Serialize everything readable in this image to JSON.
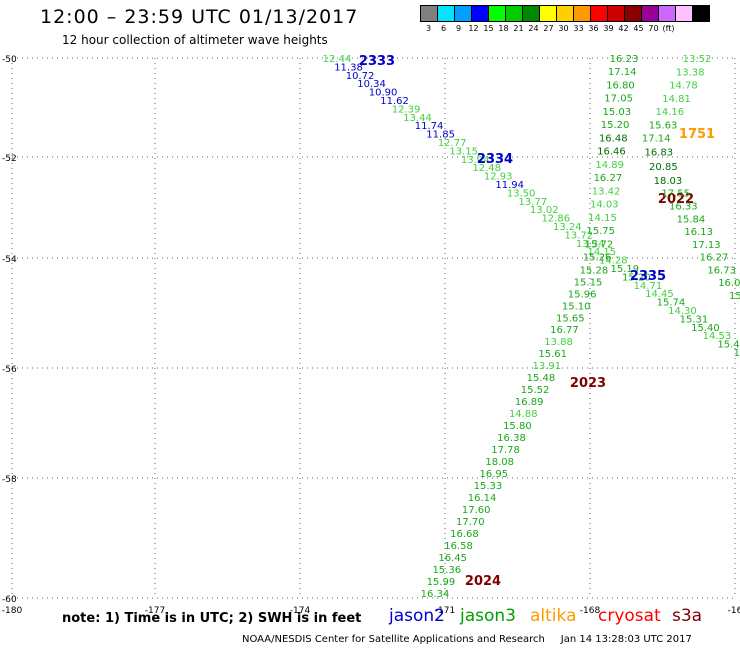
{
  "header": {
    "title": "12:00 – 23:59 UTC 01/13/2017",
    "subtitle": "12 hour collection of altimeter wave heights"
  },
  "legend": {
    "unit": "(ft)",
    "bins": [
      {
        "label": "3",
        "color": "#808080"
      },
      {
        "label": "6",
        "color": "#00e5ff"
      },
      {
        "label": "9",
        "color": "#00a0ff"
      },
      {
        "label": "12",
        "color": "#0000ff"
      },
      {
        "label": "15",
        "color": "#00ff00"
      },
      {
        "label": "18",
        "color": "#00cc00"
      },
      {
        "label": "21",
        "color": "#008800"
      },
      {
        "label": "24",
        "color": "#ffff00"
      },
      {
        "label": "27",
        "color": "#ffd000"
      },
      {
        "label": "30",
        "color": "#ff9900"
      },
      {
        "label": "33",
        "color": "#ff0000"
      },
      {
        "label": "36",
        "color": "#cc0000"
      },
      {
        "label": "39",
        "color": "#880000"
      },
      {
        "label": "42",
        "color": "#990099"
      },
      {
        "label": "45",
        "color": "#cc66ff"
      },
      {
        "label": "70",
        "color": "#ffc0ff"
      },
      {
        "label": "",
        "color": "#000000"
      }
    ]
  },
  "axes": {
    "lon_labels": [
      "-180",
      "-177",
      "-174",
      "-171",
      "-168",
      "-16"
    ],
    "lat_labels": [
      "-50",
      "-52",
      "-54",
      "-56",
      "-58",
      "-60"
    ]
  },
  "colors": {
    "light_green": "#40d040",
    "green": "#18a818",
    "dark_green": "#007000",
    "blue": "#0000cc",
    "dark_red": "#800000",
    "orange": "#ff9900"
  },
  "tracks": [
    {
      "passes": [
        "2333",
        "2334",
        "2335"
      ],
      "pass_colors": [
        "blue",
        "blue",
        "blue"
      ],
      "values": [
        {
          "v": "12.44",
          "c": "light_green"
        },
        {
          "v": "11.38",
          "c": "blue"
        },
        {
          "v": "10.72",
          "c": "blue"
        },
        {
          "v": "10.34",
          "c": "blue"
        },
        {
          "v": "10.90",
          "c": "blue"
        },
        {
          "v": "11.62",
          "c": "blue"
        },
        {
          "v": "12.39",
          "c": "light_green"
        },
        {
          "v": "13.44",
          "c": "light_green"
        },
        {
          "v": "11.74",
          "c": "blue"
        },
        {
          "v": "11.85",
          "c": "blue"
        },
        {
          "v": "12.77",
          "c": "light_green"
        },
        {
          "v": "13.15",
          "c": "light_green"
        },
        {
          "v": "13.04",
          "c": "light_green"
        },
        {
          "v": "12.48",
          "c": "light_green"
        },
        {
          "v": "12.93",
          "c": "light_green"
        },
        {
          "v": "11.94",
          "c": "blue"
        },
        {
          "v": "13.50",
          "c": "light_green"
        },
        {
          "v": "13.77",
          "c": "light_green"
        },
        {
          "v": "13.02",
          "c": "light_green"
        },
        {
          "v": "12.86",
          "c": "light_green"
        },
        {
          "v": "13.24",
          "c": "light_green"
        },
        {
          "v": "13.72",
          "c": "light_green"
        },
        {
          "v": "13.34",
          "c": "light_green"
        },
        {
          "v": "14.15",
          "c": "light_green"
        },
        {
          "v": "14.28",
          "c": "light_green"
        },
        {
          "v": "15.19",
          "c": "green"
        },
        {
          "v": "15.20",
          "c": "green"
        },
        {
          "v": "14.71",
          "c": "light_green"
        },
        {
          "v": "14.45",
          "c": "light_green"
        },
        {
          "v": "15.74",
          "c": "green"
        },
        {
          "v": "14.30",
          "c": "light_green"
        },
        {
          "v": "15.31",
          "c": "green"
        },
        {
          "v": "15.40",
          "c": "green"
        },
        {
          "v": "14.53",
          "c": "light_green"
        },
        {
          "v": "15.4",
          "c": "green"
        },
        {
          "v": "15",
          "c": "green"
        }
      ]
    },
    {
      "passes": [
        "2022",
        "2023",
        "2024"
      ],
      "pass_colors": [
        "dark_red",
        "dark_red",
        "dark_red"
      ],
      "values": [
        {
          "v": "16.23",
          "c": "green"
        },
        {
          "v": "17.14",
          "c": "green"
        },
        {
          "v": "16.80",
          "c": "green"
        },
        {
          "v": "17.05",
          "c": "green"
        },
        {
          "v": "15.03",
          "c": "green"
        },
        {
          "v": "15.20",
          "c": "green"
        },
        {
          "v": "16.48",
          "c": "dark_green"
        },
        {
          "v": "16.46",
          "c": "dark_green"
        },
        {
          "v": "14.89",
          "c": "light_green"
        },
        {
          "v": "16.27",
          "c": "green"
        },
        {
          "v": "13.42",
          "c": "light_green"
        },
        {
          "v": "14.03",
          "c": "light_green"
        },
        {
          "v": "14.15",
          "c": "light_green"
        },
        {
          "v": "15.75",
          "c": "green"
        },
        {
          "v": "15.72",
          "c": "green"
        },
        {
          "v": "15.26",
          "c": "green"
        },
        {
          "v": "15.28",
          "c": "green"
        },
        {
          "v": "15.15",
          "c": "green"
        },
        {
          "v": "15.96",
          "c": "green"
        },
        {
          "v": "15.10",
          "c": "green"
        },
        {
          "v": "15.65",
          "c": "green"
        },
        {
          "v": "16.77",
          "c": "green"
        },
        {
          "v": "13.88",
          "c": "light_green"
        },
        {
          "v": "15.61",
          "c": "green"
        },
        {
          "v": "13.91",
          "c": "light_green"
        },
        {
          "v": "15.48",
          "c": "green"
        },
        {
          "v": "15.52",
          "c": "green"
        },
        {
          "v": "16.89",
          "c": "green"
        },
        {
          "v": "14.88",
          "c": "light_green"
        },
        {
          "v": "15.80",
          "c": "green"
        },
        {
          "v": "16.38",
          "c": "green"
        },
        {
          "v": "17.78",
          "c": "green"
        },
        {
          "v": "18.08",
          "c": "green"
        },
        {
          "v": "16.95",
          "c": "green"
        },
        {
          "v": "15.33",
          "c": "green"
        },
        {
          "v": "16.14",
          "c": "green"
        },
        {
          "v": "17.60",
          "c": "green"
        },
        {
          "v": "17.70",
          "c": "green"
        },
        {
          "v": "16.68",
          "c": "green"
        },
        {
          "v": "16.58",
          "c": "green"
        },
        {
          "v": "16.45",
          "c": "green"
        },
        {
          "v": "15.36",
          "c": "green"
        },
        {
          "v": "15.99",
          "c": "green"
        },
        {
          "v": "16.34",
          "c": "green"
        }
      ]
    },
    {
      "passes": [
        "1751"
      ],
      "pass_colors": [
        "orange"
      ],
      "values": [
        {
          "v": "13.52",
          "c": "light_green"
        },
        {
          "v": "13.38",
          "c": "light_green"
        },
        {
          "v": "14.78",
          "c": "light_green"
        },
        {
          "v": "14.81",
          "c": "light_green"
        },
        {
          "v": "14.16",
          "c": "light_green"
        },
        {
          "v": "15.63",
          "c": "green"
        },
        {
          "v": "17.14",
          "c": "green"
        },
        {
          "v": "16.83",
          "c": "dark_green"
        },
        {
          "v": "20.85",
          "c": "dark_green"
        },
        {
          "v": "18.03",
          "c": "dark_green"
        },
        {
          "v": "17.55",
          "c": "green"
        },
        {
          "v": "16.33",
          "c": "green"
        },
        {
          "v": "15.84",
          "c": "green"
        },
        {
          "v": "16.13",
          "c": "green"
        },
        {
          "v": "17.13",
          "c": "green"
        },
        {
          "v": "16.27",
          "c": "green"
        },
        {
          "v": "16.73",
          "c": "green"
        },
        {
          "v": "16.0",
          "c": "green"
        },
        {
          "v": "15.",
          "c": "green"
        }
      ]
    }
  ],
  "footer": {
    "note": "note:  1) Time is in UTC;  2) SWH is in feet",
    "satellites": [
      {
        "name": "jason2",
        "color": "#0000cc"
      },
      {
        "name": "jason3",
        "color": "#00a000"
      },
      {
        "name": "altika",
        "color": "#ff9900"
      },
      {
        "name": "cryosat",
        "color": "#ff0000"
      },
      {
        "name": "s3a",
        "color": "#800000"
      }
    ],
    "credit": "NOAA/NESDIS Center for Satellite Applications and Research",
    "timestamp": "Jan 14 13:28:03 UTC 2017"
  }
}
